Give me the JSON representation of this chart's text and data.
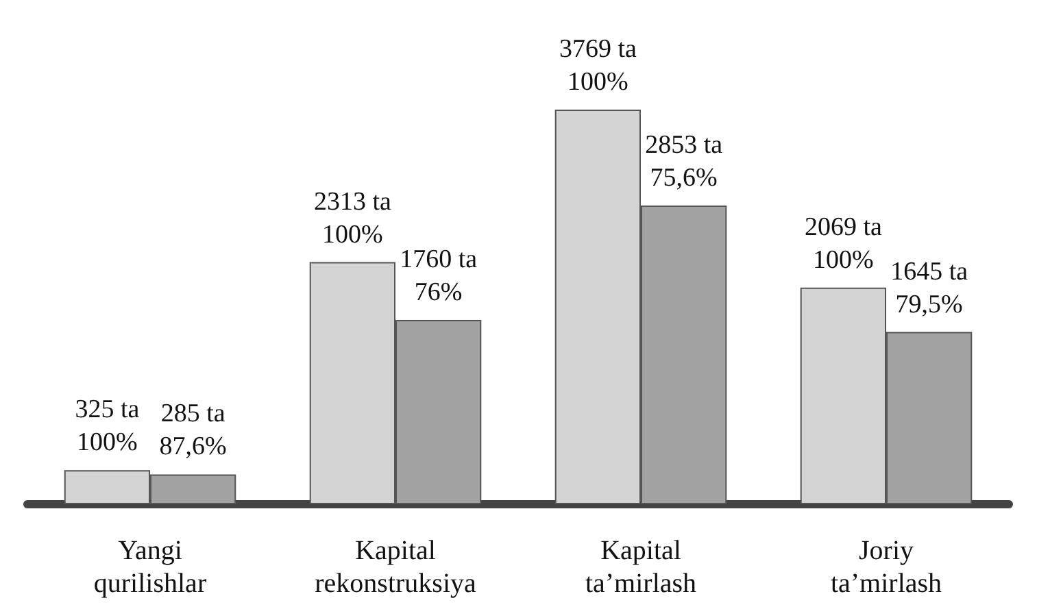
{
  "chart_data": {
    "type": "bar",
    "categories": [
      "Yangi\nqurilishlar",
      "Kapital\nrekonstruksiya",
      "Kapital\nta’mirlash",
      "Joriy\nta’mirlash"
    ],
    "series": [
      {
        "color": "#d4d4d4",
        "values": [
          325,
          2313,
          3769,
          2069
        ],
        "value_labels": [
          "325 ta\n100%",
          "2313 ta\n100%",
          "3769 ta\n100%",
          "2069 ta\n100%"
        ]
      },
      {
        "color": "#a3a3a3",
        "values": [
          285,
          1760,
          2853,
          1645
        ],
        "value_labels": [
          "285 ta\n87,6%",
          "1760 ta\n76%",
          "2853 ta\n75,6%",
          "1645 ta\n79,5%"
        ]
      }
    ]
  }
}
